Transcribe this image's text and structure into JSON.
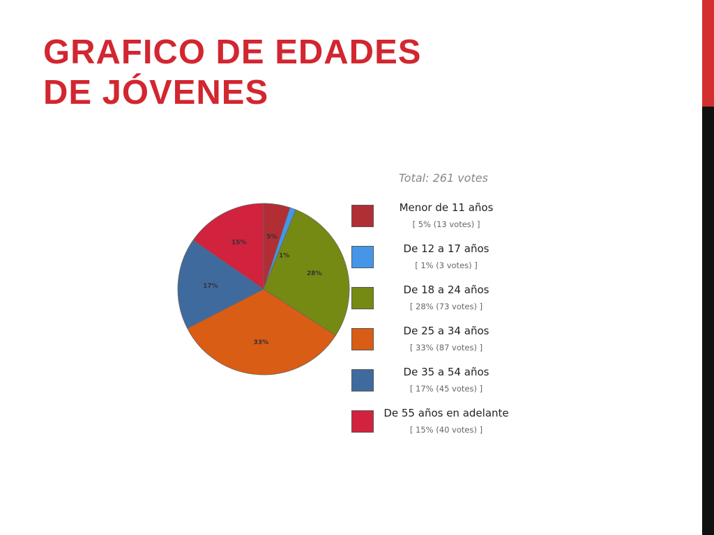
{
  "slide": {
    "title_line1": "GRAFICO DE EDADES",
    "title_line2": "DE JÓVENES"
  },
  "colors": {
    "title": "#d22630",
    "accent_bar_top": "#d32f2f",
    "accent_bar_bottom": "#111111"
  },
  "chart_data": {
    "type": "pie",
    "total_label": "Total: 261 votes",
    "slices": [
      {
        "label": "Menor de 11 años",
        "pct_label": "5%",
        "percent": 5,
        "votes": 13,
        "detail": "[ 5% (13 votes) ]",
        "color": "#b22e35"
      },
      {
        "label": "De 12 a 17 años",
        "pct_label": "1%",
        "percent": 1,
        "votes": 3,
        "detail": "[ 1% (3 votes) ]",
        "color": "#4596e8"
      },
      {
        "label": "De 18 a 24 años",
        "pct_label": "28%",
        "percent": 28,
        "votes": 73,
        "detail": "[ 28% (73 votes) ]",
        "color": "#758a12"
      },
      {
        "label": "De 25 a 34 años",
        "pct_label": "33%",
        "percent": 33,
        "votes": 87,
        "detail": "[ 33% (87 votes) ]",
        "color": "#d95d14"
      },
      {
        "label": "De 35 a 54 años",
        "pct_label": "17%",
        "percent": 17,
        "votes": 45,
        "detail": "[ 17% (45 votes) ]",
        "color": "#3f6a9e"
      },
      {
        "label": "De 55 años en adelante",
        "pct_label": "15%",
        "percent": 15,
        "votes": 40,
        "detail": "[ 15% (40 votes) ]",
        "color": "#d1223e"
      }
    ]
  }
}
